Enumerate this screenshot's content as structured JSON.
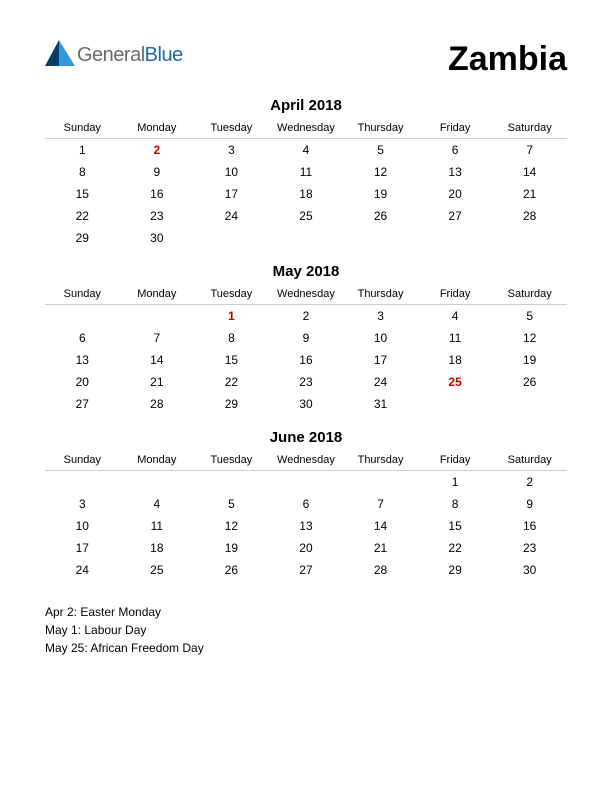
{
  "logo": {
    "text1": "General",
    "text2": "Blue"
  },
  "country": "Zambia",
  "day_headers": [
    "Sunday",
    "Monday",
    "Tuesday",
    "Wednesday",
    "Thursday",
    "Friday",
    "Saturday"
  ],
  "months": [
    {
      "title": "April 2018",
      "holiday_cells": [
        "2"
      ],
      "weeks": [
        [
          "1",
          "2",
          "3",
          "4",
          "5",
          "6",
          "7"
        ],
        [
          "8",
          "9",
          "10",
          "11",
          "12",
          "13",
          "14"
        ],
        [
          "15",
          "16",
          "17",
          "18",
          "19",
          "20",
          "21"
        ],
        [
          "22",
          "23",
          "24",
          "25",
          "26",
          "27",
          "28"
        ],
        [
          "29",
          "30",
          "",
          "",
          "",
          "",
          ""
        ]
      ]
    },
    {
      "title": "May 2018",
      "holiday_cells": [
        "1",
        "25"
      ],
      "weeks": [
        [
          "",
          "",
          "1",
          "2",
          "3",
          "4",
          "5"
        ],
        [
          "6",
          "7",
          "8",
          "9",
          "10",
          "11",
          "12"
        ],
        [
          "13",
          "14",
          "15",
          "16",
          "17",
          "18",
          "19"
        ],
        [
          "20",
          "21",
          "22",
          "23",
          "24",
          "25",
          "26"
        ],
        [
          "27",
          "28",
          "29",
          "30",
          "31",
          "",
          ""
        ]
      ]
    },
    {
      "title": "June 2018",
      "holiday_cells": [],
      "weeks": [
        [
          "",
          "",
          "",
          "",
          "",
          "1",
          "2"
        ],
        [
          "3",
          "4",
          "5",
          "6",
          "7",
          "8",
          "9"
        ],
        [
          "10",
          "11",
          "12",
          "13",
          "14",
          "15",
          "16"
        ],
        [
          "17",
          "18",
          "19",
          "20",
          "21",
          "22",
          "23"
        ],
        [
          "24",
          "25",
          "26",
          "27",
          "28",
          "29",
          "30"
        ]
      ]
    }
  ],
  "holidays_text": [
    "Apr 2: Easter Monday",
    "May 1: Labour Day",
    "May 25: African Freedom Day"
  ],
  "colors": {
    "holiday": "#cc0000",
    "logo_gray": "#6b6b6b",
    "logo_blue": "#1e6ba8",
    "arrow_dark": "#0a3d62",
    "arrow_light": "#3498db"
  }
}
